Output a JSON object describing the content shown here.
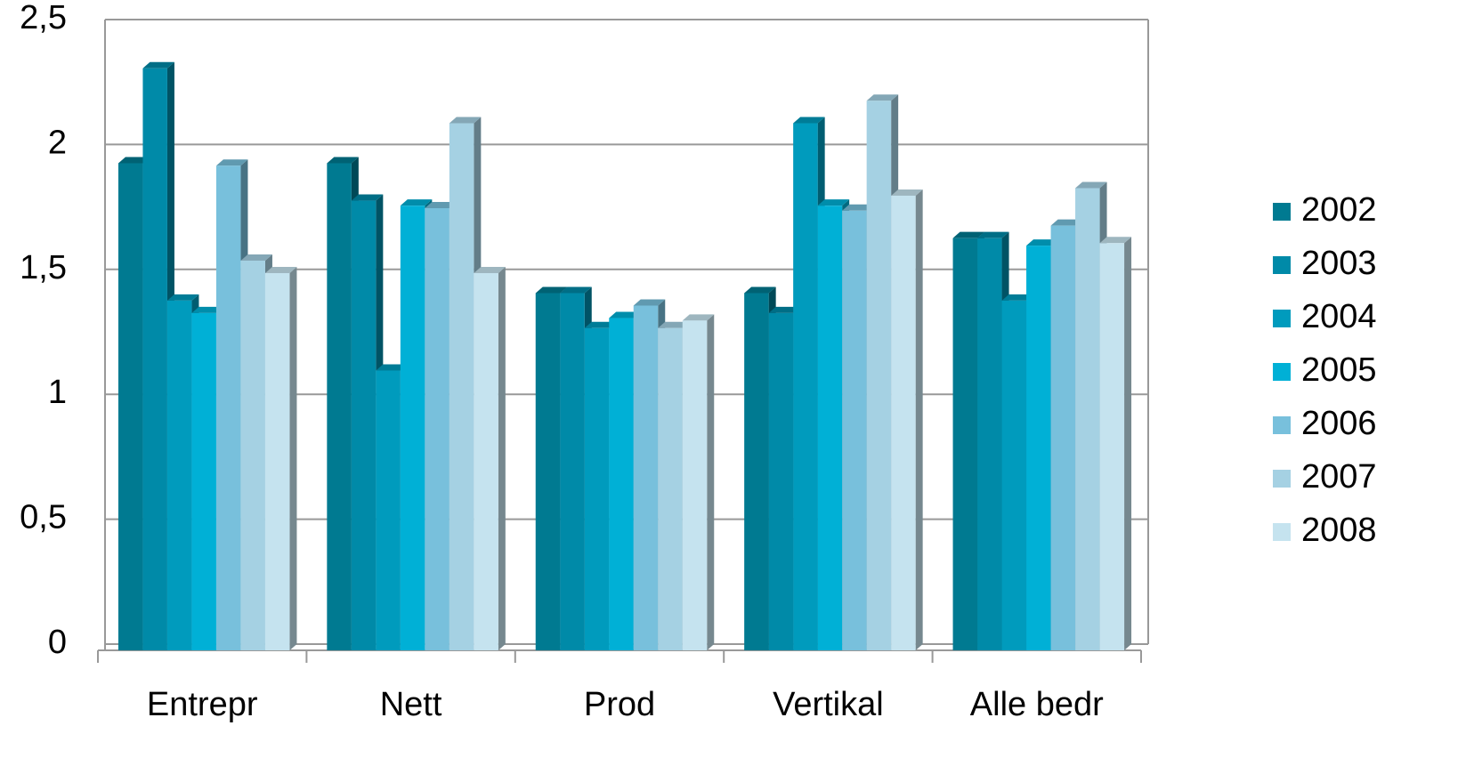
{
  "chart_data": {
    "type": "bar",
    "categories": [
      "Entrepr",
      "Nett",
      "Prod",
      "Vertikal",
      "Alle bedr"
    ],
    "series": [
      {
        "name": "2002",
        "color": "#007a91",
        "values": [
          1.95,
          1.95,
          1.43,
          1.43,
          1.65
        ]
      },
      {
        "name": "2003",
        "color": "#008aa8",
        "values": [
          2.33,
          1.8,
          1.43,
          1.35,
          1.65
        ]
      },
      {
        "name": "2004",
        "color": "#009bbd",
        "values": [
          1.4,
          1.12,
          1.29,
          2.11,
          1.4
        ]
      },
      {
        "name": "2005",
        "color": "#00b0d6",
        "values": [
          1.35,
          1.78,
          1.33,
          1.78,
          1.62
        ]
      },
      {
        "name": "2006",
        "color": "#78c0dc",
        "values": [
          1.94,
          1.77,
          1.38,
          1.76,
          1.7
        ]
      },
      {
        "name": "2007",
        "color": "#a5d1e3",
        "values": [
          1.56,
          2.11,
          1.29,
          2.2,
          1.85
        ]
      },
      {
        "name": "2008",
        "color": "#c5e3ef",
        "values": [
          1.51,
          1.51,
          1.32,
          1.82,
          1.63
        ]
      }
    ],
    "ylim": [
      0,
      2.5
    ],
    "yticks": [
      0,
      {
        "value": 0.5,
        "label": "0,5"
      },
      1,
      {
        "value": 1.5,
        "label": "1,5"
      },
      2,
      {
        "value": 2.5,
        "label": "2,5"
      }
    ],
    "grid": true,
    "legend": "right"
  }
}
